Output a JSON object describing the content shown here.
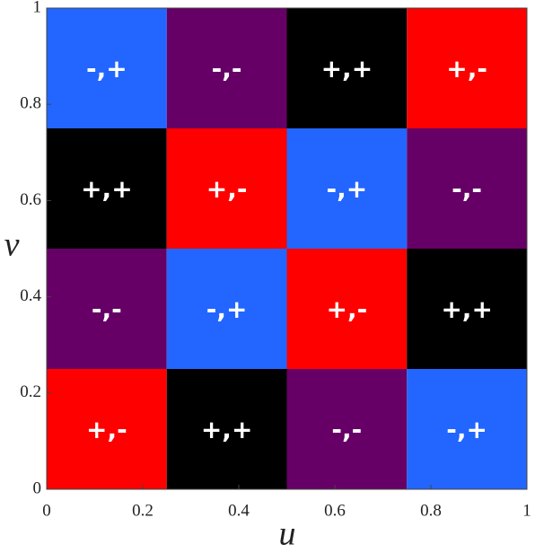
{
  "chart_data": {
    "type": "heatmap",
    "xlabel": "u",
    "ylabel": "v",
    "xlim": [
      0,
      1
    ],
    "ylim": [
      0,
      1
    ],
    "xticks": [
      0,
      0.2,
      0.4,
      0.6,
      0.8,
      1
    ],
    "yticks": [
      0,
      0.2,
      0.4,
      0.6,
      0.8,
      1
    ],
    "xbins": [
      0,
      0.25,
      0.5,
      0.75,
      1
    ],
    "ybins": [
      0,
      0.25,
      0.5,
      0.75,
      1
    ],
    "rows": [
      [
        {
          "label": "+,-",
          "color": "#ff0000"
        },
        {
          "label": "+,+",
          "color": "#000000"
        },
        {
          "label": "-,-",
          "color": "#660066"
        },
        {
          "label": "-,+",
          "color": "#2266ff"
        }
      ],
      [
        {
          "label": "-,-",
          "color": "#660066"
        },
        {
          "label": "-,+",
          "color": "#2266ff"
        },
        {
          "label": "+,-",
          "color": "#ff0000"
        },
        {
          "label": "+,+",
          "color": "#000000"
        }
      ],
      [
        {
          "label": "+,+",
          "color": "#000000"
        },
        {
          "label": "+,-",
          "color": "#ff0000"
        },
        {
          "label": "-,+",
          "color": "#2266ff"
        },
        {
          "label": "-,-",
          "color": "#660066"
        }
      ],
      [
        {
          "label": "-,+",
          "color": "#2266ff"
        },
        {
          "label": "-,-",
          "color": "#660066"
        },
        {
          "label": "+,+",
          "color": "#000000"
        },
        {
          "label": "+,-",
          "color": "#ff0000"
        }
      ]
    ]
  }
}
